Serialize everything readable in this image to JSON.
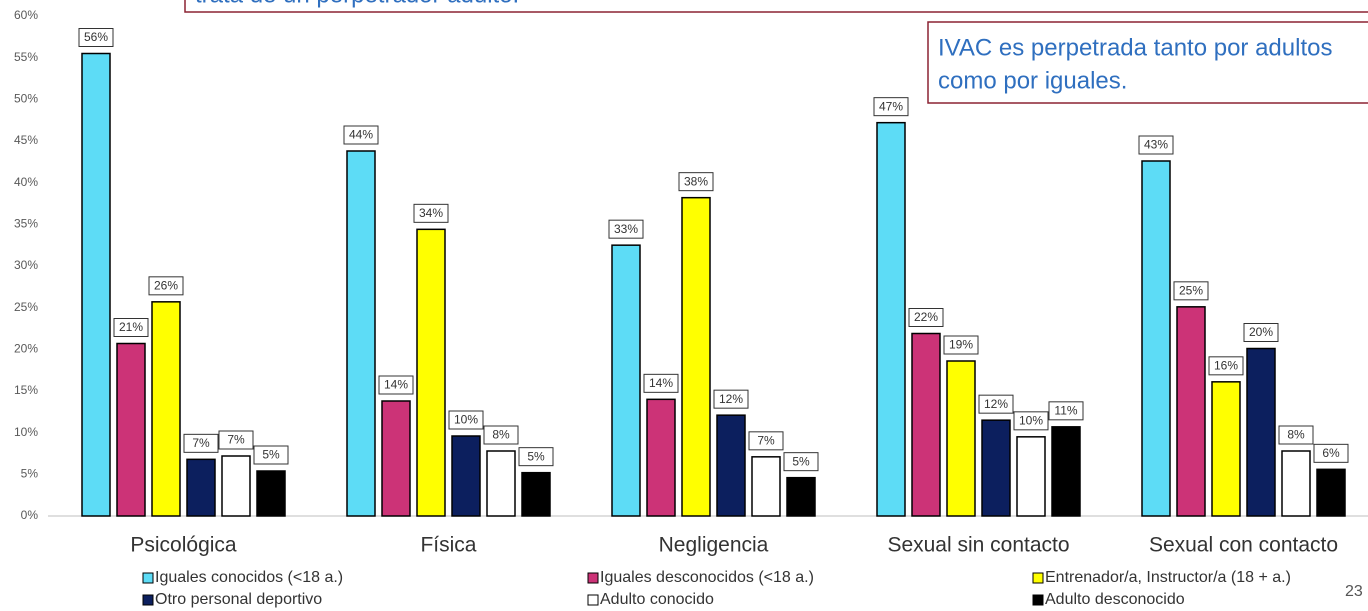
{
  "chart_data": {
    "type": "bar",
    "annotations": [
      "trata de un perpetrador adulto.",
      "IVAC es perpetrada tanto por adultos",
      "como por iguales."
    ],
    "page_number": "23",
    "categories": [
      "Psicológica",
      "Física",
      "Negligencia",
      "Sexual sin contacto",
      "Sexual con contacto"
    ],
    "ylim": [
      0,
      60
    ],
    "yticks": [
      {
        "value": 0,
        "label": "0%"
      },
      {
        "value": 5,
        "label": "5%"
      },
      {
        "value": 10,
        "label": "10%"
      },
      {
        "value": 15,
        "label": "15%"
      },
      {
        "value": 20,
        "label": "20%"
      },
      {
        "value": 25,
        "label": "25%"
      },
      {
        "value": 30,
        "label": "30%"
      },
      {
        "value": 35,
        "label": "35%"
      },
      {
        "value": 40,
        "label": "40%"
      },
      {
        "value": 45,
        "label": "45%"
      },
      {
        "value": 50,
        "label": "50%"
      },
      {
        "value": 55,
        "label": "55%"
      },
      {
        "value": 60,
        "label": "60%"
      }
    ],
    "series": [
      {
        "name": "Iguales conocidos (<18 a.)",
        "color": "#5ddcf6",
        "values": [
          55.5,
          43.8,
          32.5,
          47.2,
          42.6
        ],
        "value_labels": [
          "56%",
          "44%",
          "33%",
          "47%",
          "43%"
        ]
      },
      {
        "name": "Iguales desconocidos (<18 a.)",
        "color": "#cc3377",
        "values": [
          20.7,
          13.8,
          14,
          21.9,
          25.1
        ],
        "value_labels": [
          "21%",
          "14%",
          "14%",
          "22%",
          "25%"
        ]
      },
      {
        "name": "Entrenador/a, Instructor/a (18 + a.)",
        "color": "#ffff00",
        "values": [
          25.7,
          34.4,
          38.2,
          18.6,
          16.1
        ],
        "value_labels": [
          "26%",
          "34%",
          "38%",
          "19%",
          "16%"
        ]
      },
      {
        "name": "Otro personal deportivo",
        "color": "#0c1f5e",
        "values": [
          6.8,
          9.6,
          12.1,
          11.5,
          20.1
        ],
        "value_labels": [
          "7%",
          "10%",
          "12%",
          "12%",
          "20%"
        ]
      },
      {
        "name": "Adulto conocido",
        "color": "#ffffff",
        "values": [
          7.2,
          7.8,
          7.1,
          9.5,
          7.8
        ],
        "value_labels": [
          "7%",
          "8%",
          "7%",
          "10%",
          "8%"
        ]
      },
      {
        "name": "Adulto desconocido",
        "color": "#000000",
        "values": [
          5.4,
          5.2,
          4.6,
          10.7,
          5.6
        ],
        "value_labels": [
          "5%",
          "5%",
          "5%",
          "11%",
          "6%"
        ]
      }
    ]
  }
}
